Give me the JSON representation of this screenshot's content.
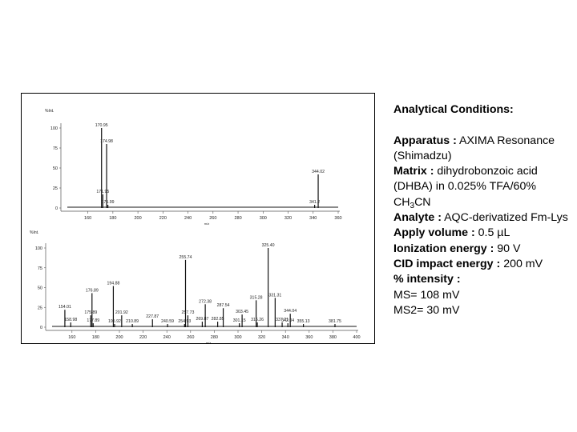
{
  "chart_data": [
    {
      "type": "bar",
      "panel": "ms",
      "ylabel": "%Int.",
      "xlabel": "m/z",
      "xlim": [
        150,
        360
      ],
      "ylim": [
        0,
        100
      ],
      "yticks": [
        0,
        25,
        50,
        75,
        100
      ],
      "xticks": [
        160,
        180,
        200,
        220,
        240,
        260,
        280,
        300,
        320,
        340,
        360
      ],
      "peaks": [
        {
          "x": 170.95,
          "y": 100,
          "label": "170.95"
        },
        {
          "x": 174.98,
          "y": 80,
          "label": "174.98"
        },
        {
          "x": 171.95,
          "y": 17,
          "label": "171.95"
        },
        {
          "x": 175.99,
          "y": 4,
          "label": "175.99"
        },
        {
          "x": 344.02,
          "y": 42,
          "label": "344.02"
        },
        {
          "x": 341.2,
          "y": 4,
          "label": "341.2"
        }
      ]
    },
    {
      "type": "bar",
      "panel": "ms2",
      "ylabel": "%Int.",
      "xlabel": "m/z",
      "xlim": [
        150,
        400
      ],
      "ylim": [
        0,
        100
      ],
      "yticks": [
        0,
        25,
        50,
        75,
        100
      ],
      "xticks": [
        160,
        180,
        200,
        220,
        240,
        260,
        280,
        300,
        320,
        340,
        360,
        380,
        400
      ],
      "peaks": [
        {
          "x": 154.01,
          "y": 22,
          "label": "154.01"
        },
        {
          "x": 158.98,
          "y": 6,
          "label": "158.98"
        },
        {
          "x": 175.89,
          "y": 15,
          "label": "175.89"
        },
        {
          "x": 176.89,
          "y": 43,
          "label": "176.89"
        },
        {
          "x": 177.89,
          "y": 5,
          "label": "177.89"
        },
        {
          "x": 194.88,
          "y": 52,
          "label": "194.88"
        },
        {
          "x": 195.92,
          "y": 4,
          "label": "195.92"
        },
        {
          "x": 201.92,
          "y": 15,
          "label": "201.92"
        },
        {
          "x": 210.89,
          "y": 4,
          "label": "210.89"
        },
        {
          "x": 227.87,
          "y": 10,
          "label": "227.87"
        },
        {
          "x": 240.59,
          "y": 4,
          "label": "240.59"
        },
        {
          "x": 255.74,
          "y": 85,
          "label": "255.74"
        },
        {
          "x": 254.93,
          "y": 4,
          "label": "254.93"
        },
        {
          "x": 257.73,
          "y": 15,
          "label": "257.73"
        },
        {
          "x": 269.87,
          "y": 7,
          "label": "269.87"
        },
        {
          "x": 272.38,
          "y": 29,
          "label": "272.38"
        },
        {
          "x": 282.85,
          "y": 7,
          "label": "282.85"
        },
        {
          "x": 287.54,
          "y": 24,
          "label": "287.54"
        },
        {
          "x": 301.15,
          "y": 5,
          "label": "301.15"
        },
        {
          "x": 303.45,
          "y": 16,
          "label": "303.45"
        },
        {
          "x": 315.28,
          "y": 34,
          "label": "315.28"
        },
        {
          "x": 316.26,
          "y": 6,
          "label": "316.26"
        },
        {
          "x": 325.4,
          "y": 100,
          "label": "325.40"
        },
        {
          "x": 331.31,
          "y": 37,
          "label": "331.31"
        },
        {
          "x": 337.21,
          "y": 6,
          "label": "337.21"
        },
        {
          "x": 342.04,
          "y": 5,
          "label": "342.04"
        },
        {
          "x": 344.04,
          "y": 17,
          "label": "344.04"
        },
        {
          "x": 355.13,
          "y": 4,
          "label": "355.13"
        },
        {
          "x": 381.75,
          "y": 4,
          "label": "381.75"
        }
      ]
    }
  ],
  "conditions": {
    "title": "Analytical Conditions:",
    "apparatus_label": "Apparatus :",
    "apparatus_value": " AXIMA Resonance (Shimadzu)",
    "matrix_label": "Matrix :",
    "matrix_value": " dihydrobonzoic acid (DHBA) in 0.025% TFA/60% CH",
    "matrix_sub": "3",
    "matrix_tail": "CN",
    "analyte_label": "Analyte :",
    "analyte_value": " AQC-derivatized Fm-Lys",
    "apply_label": "Apply volume :",
    "apply_value": " 0.5 µL",
    "ionization_label": "Ionization energy :",
    "ionization_value": " 90 V",
    "cid_label": "CID impact energy :",
    "cid_value": " 200 mV",
    "intensity_label": "% intensity :",
    "ms_line": "MS= 108 mV",
    "ms2_line": "MS2= 30 mV"
  }
}
